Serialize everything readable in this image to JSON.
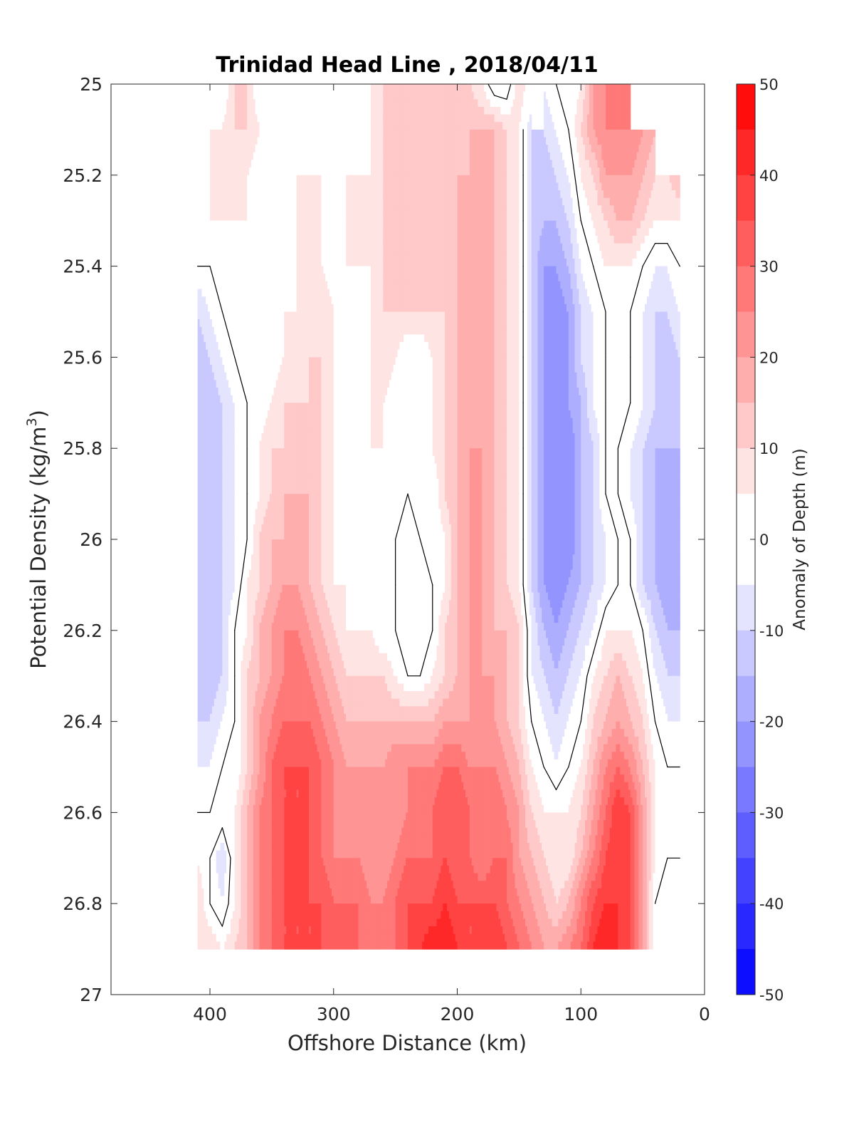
{
  "chart_data": {
    "type": "heatmap",
    "title": "Trinidad Head Line , 2018/04/11",
    "xlabel": "Offshore Distance (km)",
    "ylabel_main": "Potential Density (kg/m",
    "ylabel_sup": "3",
    "ylabel_end": ")",
    "colorbar_label": "Anomaly of Depth (m)",
    "xlim": [
      480,
      0
    ],
    "x_reversed": true,
    "ylim": [
      25,
      27
    ],
    "y_reversed": true,
    "grid": false,
    "x_ticks": [
      400,
      300,
      200,
      100,
      0
    ],
    "x_tick_labels": [
      "400",
      "300",
      "200",
      "100",
      "0"
    ],
    "y_ticks": [
      25,
      25.2,
      25.4,
      25.6,
      25.8,
      26,
      26.2,
      26.4,
      26.6,
      26.8,
      27
    ],
    "y_tick_labels": [
      "25",
      "25.2",
      "25.4",
      "25.6",
      "25.8",
      "26",
      "26.2",
      "26.4",
      "26.6",
      "26.8",
      "27"
    ],
    "colorbar_ticks": [
      50,
      40,
      30,
      20,
      10,
      0,
      -10,
      -20,
      -30,
      -40,
      -50
    ],
    "colorbar_tick_labels": [
      "50",
      "40",
      "30",
      "20",
      "10",
      "0",
      "-10",
      "-20",
      "-30",
      "-40",
      "-50"
    ],
    "clim": [
      -50,
      50
    ],
    "contour_step": 5,
    "zero_contour_drawn": true,
    "colormap": {
      "negative_end": "#0000ff",
      "zero": "#ffffff",
      "positive_end": "#ff0000"
    },
    "colors": {
      "zero_contour": "#000000",
      "axes": "#262626"
    },
    "distance_km": [
      410,
      400,
      390,
      380,
      370,
      360,
      350,
      340,
      330,
      320,
      310,
      300,
      290,
      280,
      270,
      260,
      250,
      240,
      230,
      220,
      210,
      200,
      190,
      180,
      170,
      160,
      150,
      140,
      130,
      120,
      110,
      100,
      90,
      80,
      70,
      60,
      50,
      40,
      30,
      20
    ],
    "density": [
      25.0,
      25.1,
      25.2,
      25.3,
      25.4,
      25.5,
      25.6,
      25.7,
      25.8,
      25.9,
      26.0,
      26.1,
      26.2,
      26.3,
      26.4,
      26.5,
      26.6,
      26.7,
      26.8,
      26.9
    ],
    "anomaly_m": [
      [
        null,
        null,
        0,
        10,
        10,
        0,
        0,
        0,
        0,
        0,
        0,
        0,
        5,
        0,
        5,
        10,
        10,
        10,
        10,
        10,
        10,
        10,
        10,
        5,
        -5,
        -5,
        10,
        null,
        null,
        0,
        0,
        5,
        20,
        25,
        30,
        null,
        null,
        null,
        null,
        null
      ],
      [
        null,
        null,
        5,
        10,
        10,
        5,
        0,
        0,
        5,
        0,
        0,
        0,
        5,
        0,
        5,
        10,
        10,
        10,
        10,
        10,
        10,
        10,
        15,
        15,
        15,
        10,
        5,
        -10,
        -10,
        -5,
        0,
        10,
        20,
        25,
        25,
        25,
        20,
        null,
        null,
        null
      ],
      [
        5,
        5,
        10,
        5,
        5,
        0,
        0,
        0,
        5,
        5,
        5,
        0,
        5,
        5,
        5,
        10,
        10,
        10,
        10,
        10,
        15,
        15,
        15,
        15,
        15,
        10,
        5,
        -10,
        -15,
        -10,
        -5,
        5,
        10,
        20,
        20,
        20,
        15,
        10,
        10,
        15
      ],
      [
        0,
        5,
        5,
        5,
        5,
        0,
        0,
        0,
        5,
        5,
        5,
        0,
        5,
        5,
        5,
        10,
        10,
        10,
        10,
        10,
        10,
        15,
        15,
        15,
        15,
        10,
        5,
        -10,
        -15,
        -15,
        -10,
        0,
        5,
        10,
        15,
        15,
        10,
        5,
        5,
        5
      ],
      [
        0,
        0,
        0,
        0,
        0,
        0,
        0,
        0,
        5,
        5,
        5,
        0,
        5,
        5,
        5,
        10,
        10,
        10,
        10,
        10,
        10,
        15,
        15,
        20,
        15,
        10,
        5,
        -10,
        -20,
        -20,
        -15,
        -5,
        0,
        5,
        5,
        5,
        0,
        -5,
        -5,
        0
      ],
      [
        -10,
        -5,
        0,
        0,
        0,
        0,
        0,
        5,
        5,
        5,
        10,
        5,
        5,
        0,
        5,
        10,
        10,
        10,
        10,
        10,
        10,
        15,
        15,
        20,
        15,
        10,
        5,
        -10,
        -20,
        -25,
        -20,
        -10,
        -5,
        0,
        0,
        0,
        -5,
        -10,
        -10,
        -5
      ],
      [
        -15,
        -10,
        -5,
        0,
        0,
        0,
        0,
        5,
        5,
        10,
        10,
        5,
        0,
        0,
        5,
        10,
        5,
        0,
        0,
        5,
        10,
        15,
        15,
        20,
        15,
        10,
        5,
        -10,
        -20,
        -25,
        -20,
        -10,
        -5,
        0,
        0,
        0,
        -5,
        -10,
        -15,
        -10
      ],
      [
        -15,
        -15,
        -10,
        -5,
        0,
        0,
        5,
        10,
        10,
        10,
        10,
        5,
        0,
        0,
        5,
        5,
        0,
        0,
        0,
        5,
        10,
        15,
        15,
        20,
        15,
        10,
        5,
        -10,
        -20,
        -25,
        -20,
        -15,
        -5,
        0,
        0,
        0,
        -5,
        -10,
        -15,
        -15
      ],
      [
        -15,
        -15,
        -10,
        -5,
        0,
        5,
        10,
        10,
        15,
        10,
        10,
        5,
        0,
        0,
        5,
        5,
        0,
        0,
        0,
        5,
        10,
        15,
        20,
        20,
        15,
        10,
        5,
        -10,
        -20,
        -25,
        -25,
        -15,
        -10,
        0,
        0,
        -5,
        -10,
        -15,
        -15,
        -15
      ],
      [
        -15,
        -15,
        -10,
        -5,
        0,
        5,
        10,
        15,
        15,
        15,
        10,
        5,
        0,
        0,
        0,
        5,
        0,
        0,
        0,
        0,
        10,
        15,
        20,
        20,
        15,
        10,
        5,
        -10,
        -20,
        -25,
        -25,
        -15,
        -10,
        0,
        0,
        -5,
        -10,
        -15,
        -20,
        -15
      ],
      [
        -15,
        -15,
        -10,
        -5,
        0,
        10,
        15,
        15,
        15,
        15,
        10,
        5,
        0,
        0,
        0,
        0,
        0,
        -5,
        0,
        0,
        5,
        15,
        20,
        20,
        15,
        10,
        5,
        -10,
        -20,
        -25,
        -25,
        -15,
        -10,
        -5,
        0,
        0,
        -10,
        -15,
        -20,
        -15
      ],
      [
        -15,
        -15,
        -10,
        -5,
        5,
        10,
        15,
        20,
        20,
        15,
        10,
        5,
        5,
        0,
        0,
        0,
        0,
        -5,
        -5,
        0,
        5,
        15,
        20,
        20,
        15,
        10,
        5,
        -10,
        -20,
        -25,
        -20,
        -15,
        -10,
        -5,
        0,
        0,
        -10,
        -15,
        -20,
        -15
      ],
      [
        -15,
        -15,
        -10,
        0,
        5,
        15,
        20,
        25,
        25,
        20,
        15,
        10,
        5,
        5,
        5,
        0,
        0,
        -5,
        -5,
        0,
        10,
        15,
        20,
        20,
        15,
        15,
        10,
        -5,
        -15,
        -20,
        -15,
        -10,
        -5,
        5,
        5,
        5,
        0,
        -10,
        -15,
        -15
      ],
      [
        -15,
        -15,
        -10,
        0,
        10,
        15,
        20,
        25,
        30,
        25,
        20,
        15,
        10,
        10,
        10,
        10,
        5,
        0,
        0,
        5,
        10,
        15,
        20,
        20,
        20,
        15,
        10,
        -5,
        -10,
        -15,
        -10,
        -5,
        5,
        10,
        15,
        10,
        5,
        -5,
        -10,
        -10
      ],
      [
        -10,
        -10,
        -5,
        0,
        10,
        20,
        25,
        30,
        30,
        30,
        25,
        20,
        15,
        15,
        15,
        15,
        15,
        15,
        15,
        15,
        20,
        20,
        20,
        20,
        20,
        15,
        10,
        0,
        -5,
        -10,
        -5,
        0,
        10,
        15,
        20,
        15,
        10,
        0,
        -5,
        -5
      ],
      [
        -5,
        -5,
        0,
        0,
        10,
        20,
        30,
        35,
        35,
        35,
        30,
        25,
        20,
        20,
        20,
        20,
        25,
        25,
        25,
        25,
        30,
        30,
        25,
        25,
        25,
        20,
        15,
        5,
        0,
        -5,
        0,
        5,
        15,
        25,
        30,
        25,
        15,
        5,
        0,
        0
      ],
      [
        0,
        0,
        5,
        5,
        15,
        25,
        30,
        35,
        35,
        35,
        30,
        25,
        20,
        20,
        20,
        20,
        20,
        25,
        25,
        30,
        35,
        35,
        30,
        30,
        30,
        25,
        20,
        10,
        5,
        5,
        5,
        10,
        20,
        30,
        40,
        35,
        20,
        5,
        0,
        0
      ],
      [
        5,
        0,
        -10,
        5,
        15,
        25,
        30,
        35,
        40,
        35,
        30,
        25,
        25,
        25,
        20,
        20,
        25,
        30,
        30,
        30,
        35,
        30,
        30,
        25,
        30,
        30,
        20,
        15,
        10,
        5,
        5,
        15,
        25,
        35,
        40,
        35,
        20,
        5,
        0,
        0
      ],
      [
        10,
        0,
        -5,
        5,
        15,
        25,
        30,
        35,
        35,
        35,
        35,
        30,
        30,
        30,
        25,
        25,
        30,
        35,
        35,
        35,
        40,
        35,
        35,
        35,
        35,
        30,
        25,
        20,
        15,
        10,
        15,
        25,
        35,
        40,
        40,
        35,
        20,
        0,
        -5,
        -5
      ],
      [
        10,
        10,
        5,
        10,
        15,
        25,
        30,
        35,
        35,
        35,
        35,
        30,
        30,
        30,
        30,
        30,
        30,
        35,
        40,
        45,
        45,
        40,
        35,
        35,
        40,
        35,
        30,
        25,
        20,
        20,
        25,
        30,
        40,
        45,
        40,
        35,
        20,
        0,
        null,
        null
      ]
    ]
  }
}
